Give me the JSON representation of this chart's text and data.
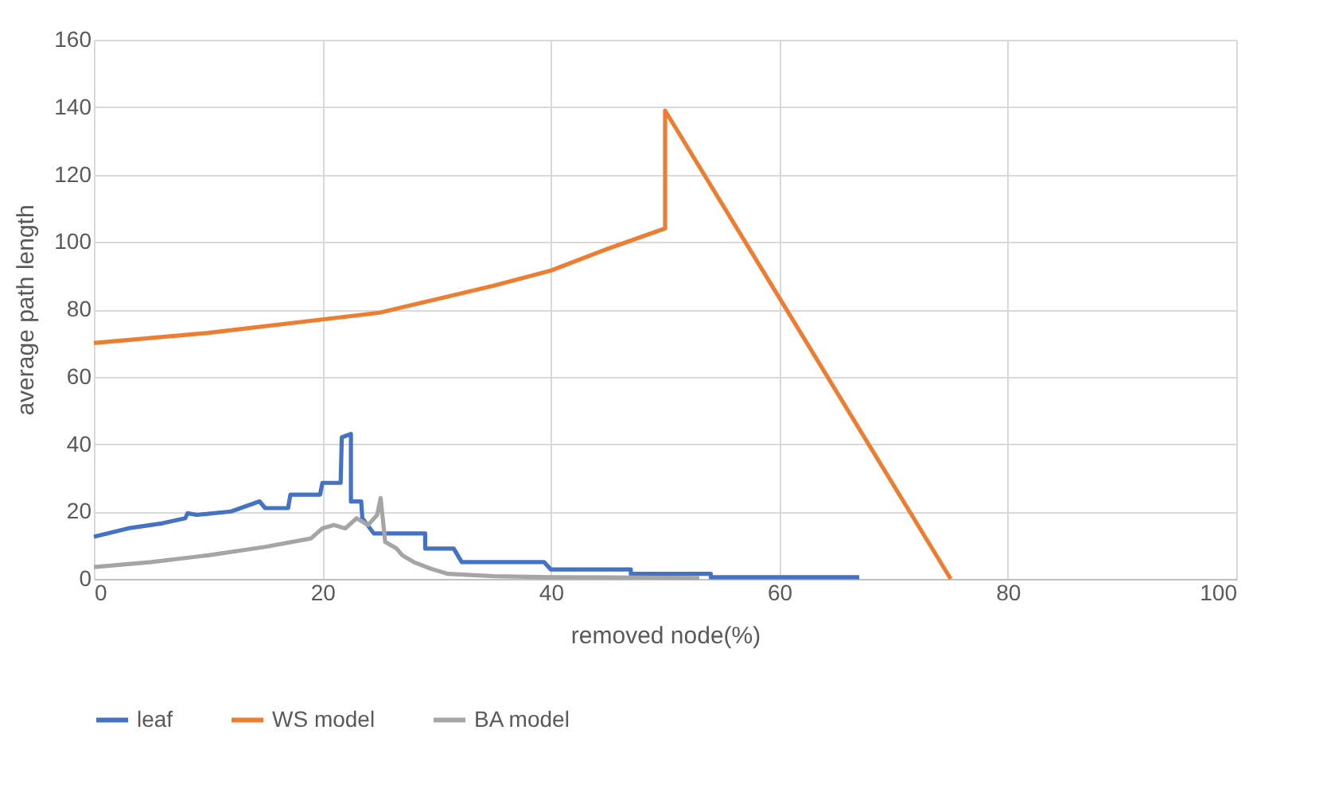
{
  "chart_data": {
    "type": "line",
    "xlabel": "removed node(%)",
    "ylabel": "average path length",
    "xlim": [
      0,
      100
    ],
    "xticks": [
      0,
      20,
      40,
      60,
      80,
      100
    ],
    "ylim": [
      0,
      160
    ],
    "yticks": [
      0,
      20,
      40,
      60,
      80,
      100,
      120,
      140,
      160
    ],
    "grid": true,
    "legend": "bottom",
    "marker": "none",
    "line_style": "solid",
    "series": [
      {
        "name": "leaf",
        "color": "#4472c4",
        "x": [
          0,
          3,
          6,
          8,
          8.2,
          9,
          12,
          14.5,
          15,
          17,
          17.2,
          18,
          19.8,
          20,
          21.6,
          21.7,
          22.5,
          22.5,
          23.4,
          23.5,
          24.5,
          25.6,
          29,
          29,
          31.5,
          32.2,
          39.4,
          40,
          47,
          47,
          54,
          54,
          67
        ],
        "values": [
          12.5,
          15,
          16.5,
          18,
          19.5,
          19,
          20,
          23,
          21,
          21,
          25,
          25,
          25,
          28.5,
          28.5,
          42,
          43,
          23,
          23,
          18,
          13.5,
          13.5,
          13.5,
          9,
          9,
          5,
          5,
          2.8,
          2.8,
          1.5,
          1.5,
          0.5,
          0.5
        ]
      },
      {
        "name": "WS model",
        "color": "#ed7d31",
        "x": [
          0,
          10,
          20,
          25,
          30,
          35,
          40,
          45,
          50,
          50,
          75
        ],
        "values": [
          70,
          73,
          77,
          79,
          83,
          87,
          91.5,
          98,
          104,
          139,
          0
        ]
      },
      {
        "name": "BA model",
        "color": "#a5a5a5",
        "x": [
          0,
          5,
          10,
          15,
          19,
          20,
          21,
          22,
          23,
          24,
          24.8,
          25.1,
          25.5,
          26.5,
          27,
          28,
          29.5,
          31,
          35,
          40,
          53
        ],
        "values": [
          3.5,
          5,
          7,
          9.5,
          12,
          15,
          16,
          15,
          18,
          16,
          19,
          24,
          11,
          9,
          7,
          5,
          3,
          1.5,
          0.8,
          0.5,
          0.3
        ]
      }
    ]
  }
}
